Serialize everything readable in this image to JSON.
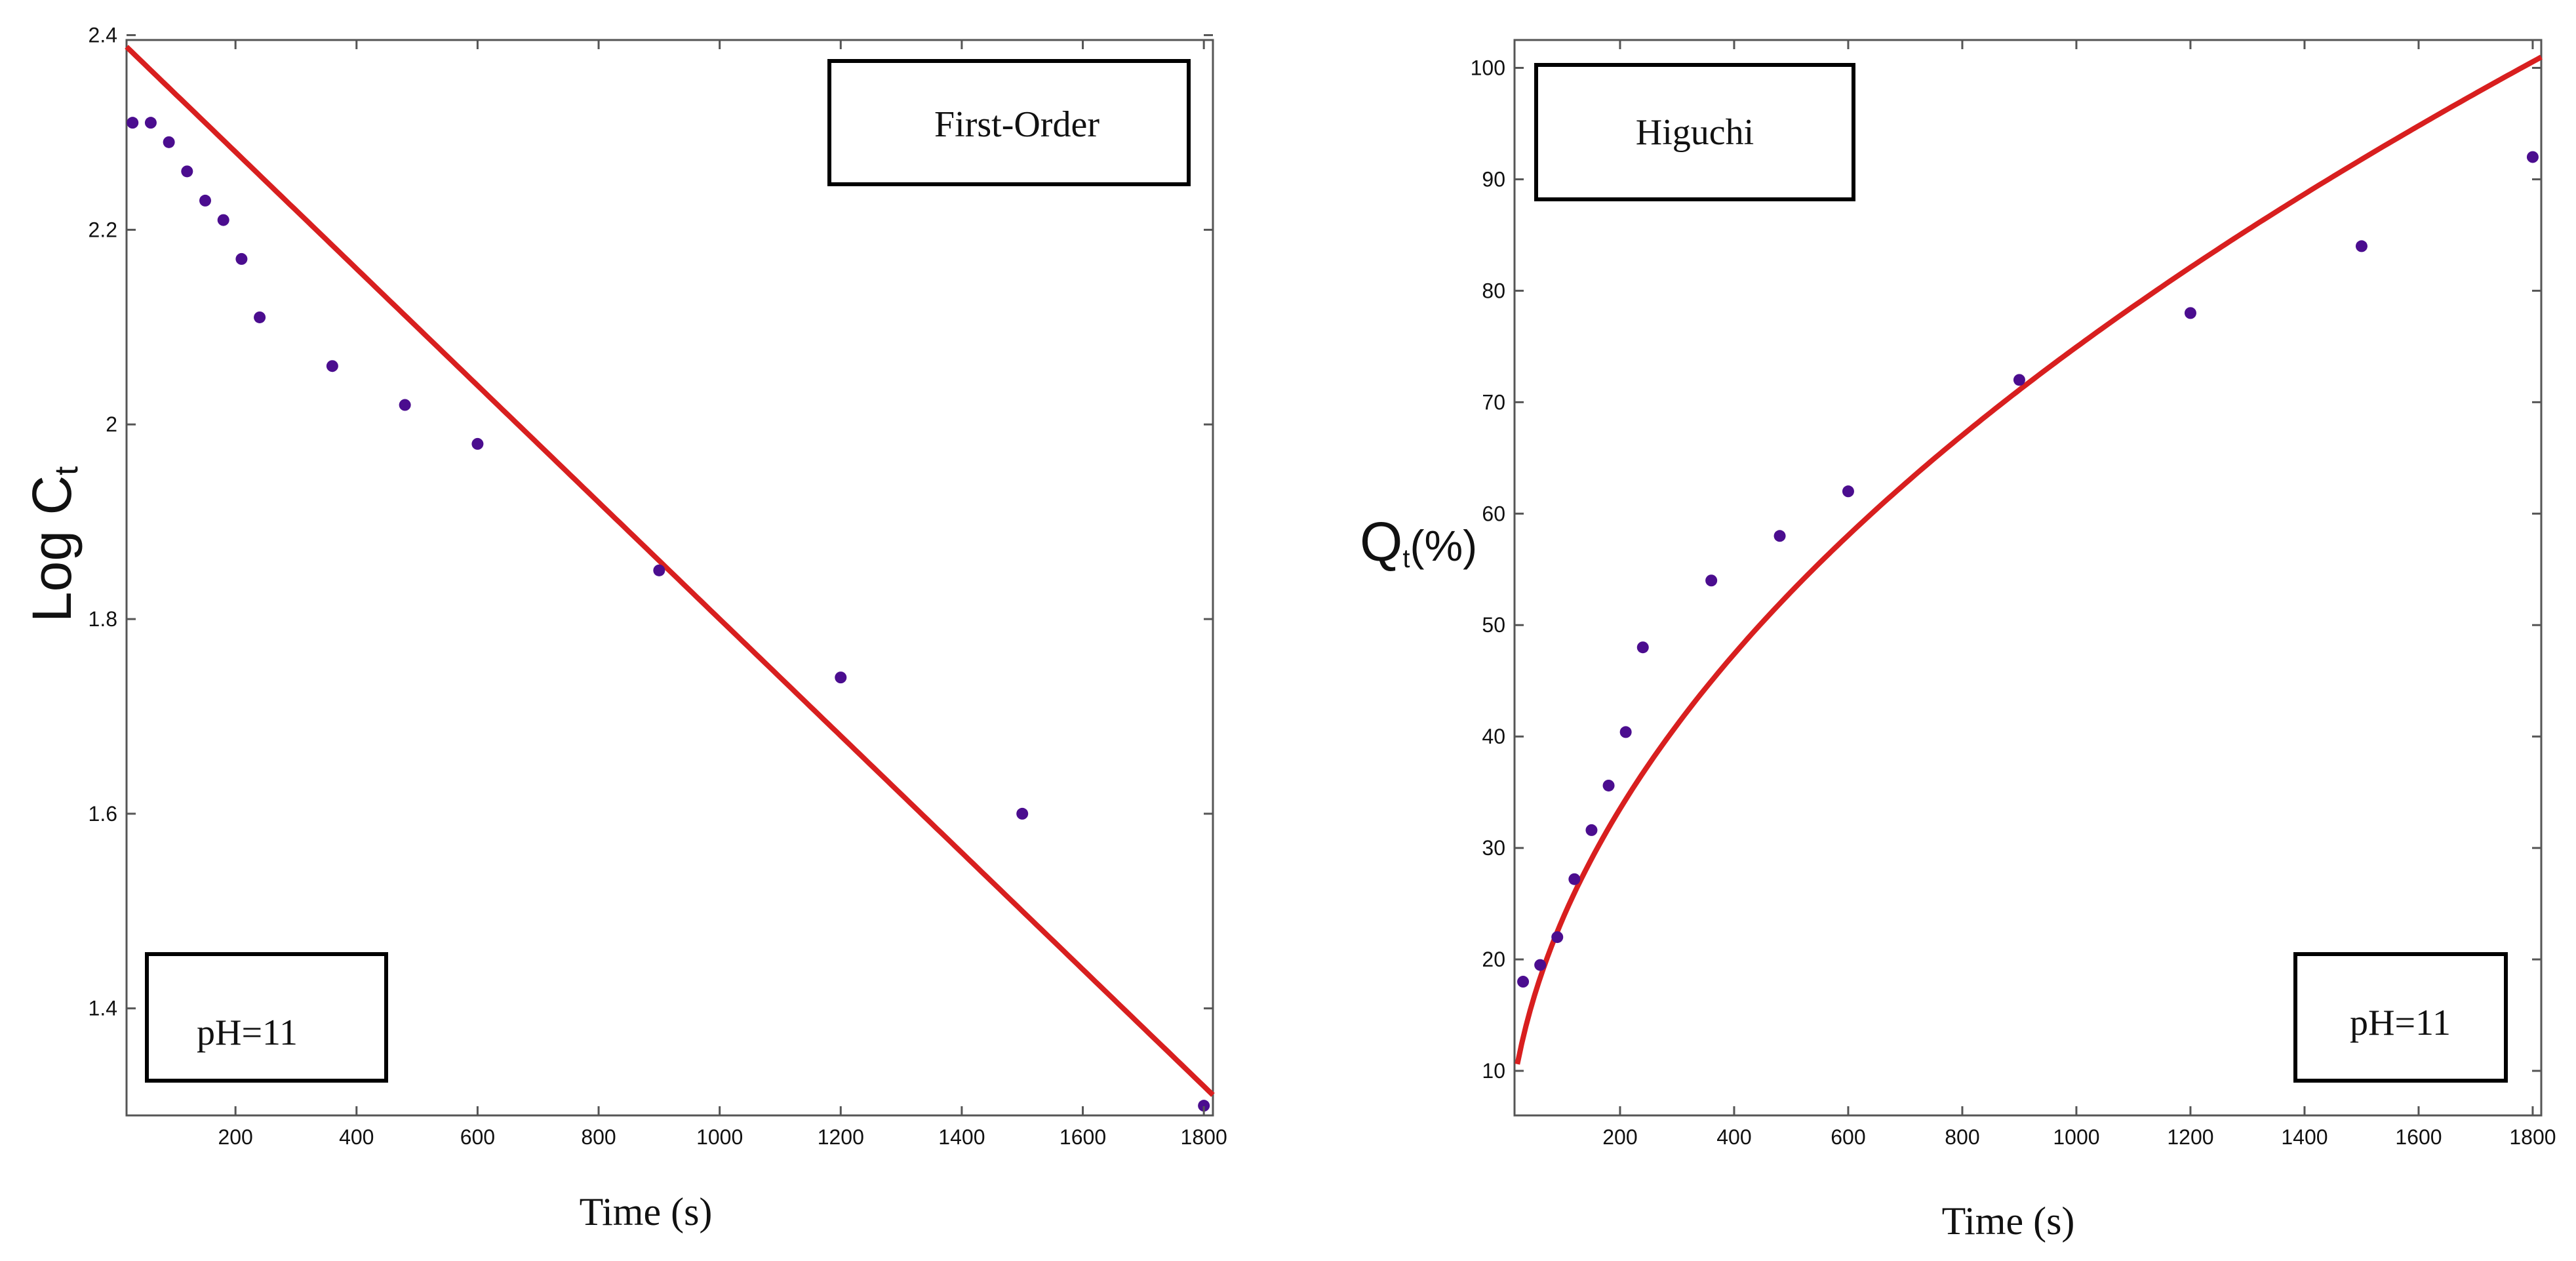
{
  "chart_data": [
    {
      "type": "scatter",
      "title": "",
      "xlabel": "Time (s)",
      "ylabel": "Log C",
      "ylabel_subscript": "t",
      "xlim": [
        20,
        1815
      ],
      "ylim": [
        1.29,
        2.395
      ],
      "xticks": [
        200,
        400,
        600,
        800,
        1000,
        1200,
        1400,
        1600,
        1800
      ],
      "yticks": [
        1.4,
        1.6,
        1.8,
        2,
        2.2,
        2.4
      ],
      "grid": false,
      "model_box": "First-Order",
      "condition_box": "pH=11",
      "series": [
        {
          "kind": "points",
          "x": [
            30,
            60,
            90,
            120,
            150,
            180,
            210,
            240,
            360,
            480,
            600,
            900,
            1200,
            1500,
            1800
          ],
          "y": [
            2.31,
            2.31,
            2.29,
            2.26,
            2.23,
            2.21,
            2.17,
            2.11,
            2.06,
            2.02,
            1.98,
            1.85,
            1.74,
            1.6,
            1.3
          ]
        },
        {
          "kind": "fit_line",
          "model": "linear",
          "x_range": [
            20,
            1815
          ],
          "y_at_x0": 2.4,
          "slope_per_s": -0.0006
        }
      ]
    },
    {
      "type": "scatter",
      "title": "",
      "xlabel": "Time (s)",
      "ylabel": "Q",
      "ylabel_subscript": "t",
      "ylabel_unit": "(%)",
      "xlim": [
        15,
        1815
      ],
      "ylim": [
        6,
        102.5
      ],
      "xticks": [
        200,
        400,
        600,
        800,
        1000,
        1200,
        1400,
        1600,
        1800
      ],
      "yticks": [
        10,
        20,
        30,
        40,
        50,
        60,
        70,
        80,
        90,
        100
      ],
      "grid": false,
      "model_box": "Higuchi",
      "condition_box": "pH=11",
      "series": [
        {
          "kind": "points",
          "x": [
            30,
            60,
            90,
            120,
            150,
            180,
            210,
            240,
            360,
            480,
            600,
            900,
            1200,
            1500,
            1800
          ],
          "y": [
            18,
            19.5,
            22,
            27.2,
            31.6,
            35.6,
            40.4,
            48,
            54,
            58,
            62,
            72,
            78,
            84,
            92
          ]
        },
        {
          "kind": "fit_line",
          "model": "higuchi",
          "x_range": [
            20,
            1815
          ],
          "coefficient_per_sqrt_s": 2.37
        }
      ]
    }
  ]
}
